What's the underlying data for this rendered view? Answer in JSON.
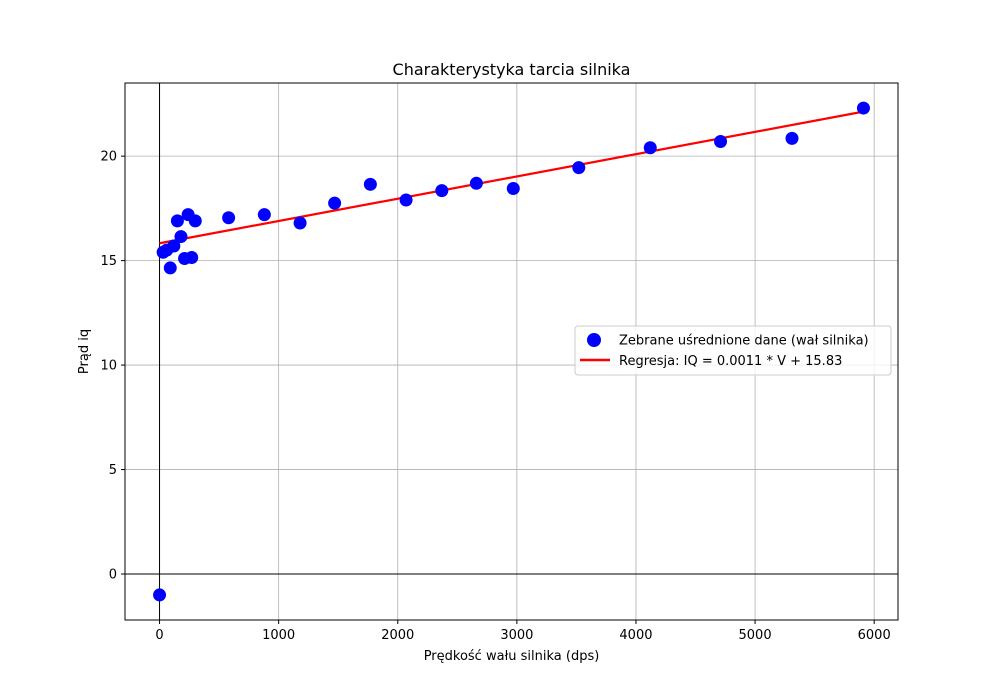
{
  "chart_data": {
    "type": "scatter",
    "title": "Charakterystyka tarcia silnika",
    "xlabel": "Prędkość wału silnika (dps)",
    "ylabel": "Prąd iq",
    "xlim": [
      -290,
      6200
    ],
    "ylim": [
      -2.2,
      23.5
    ],
    "xticks": [
      0,
      1000,
      2000,
      3000,
      4000,
      5000,
      6000
    ],
    "yticks": [
      0,
      5,
      10,
      15,
      20
    ],
    "grid": true,
    "zero_lines": true,
    "legend_position": "center-right",
    "series": [
      {
        "name": "Zebrane uśrednione dane (wał silnika)",
        "type": "scatter",
        "color": "#0000ff",
        "x": [
          0,
          30,
          60,
          90,
          120,
          150,
          180,
          210,
          240,
          270,
          300,
          580,
          880,
          1180,
          1470,
          1770,
          2070,
          2370,
          2660,
          2970,
          3520,
          4120,
          4710,
          5310,
          5910
        ],
        "y": [
          -1.0,
          15.4,
          15.5,
          14.65,
          15.7,
          16.9,
          16.15,
          15.1,
          17.2,
          15.15,
          16.9,
          17.05,
          17.2,
          16.8,
          17.75,
          18.65,
          17.9,
          18.35,
          18.7,
          18.45,
          19.45,
          20.4,
          20.7,
          20.85,
          22.3
        ]
      },
      {
        "name": "Regresja: IQ = 0.0011 * V + 15.83",
        "type": "line",
        "color": "#ff0000",
        "x": [
          0,
          5910
        ],
        "y": [
          15.83,
          22.13
        ]
      }
    ]
  }
}
